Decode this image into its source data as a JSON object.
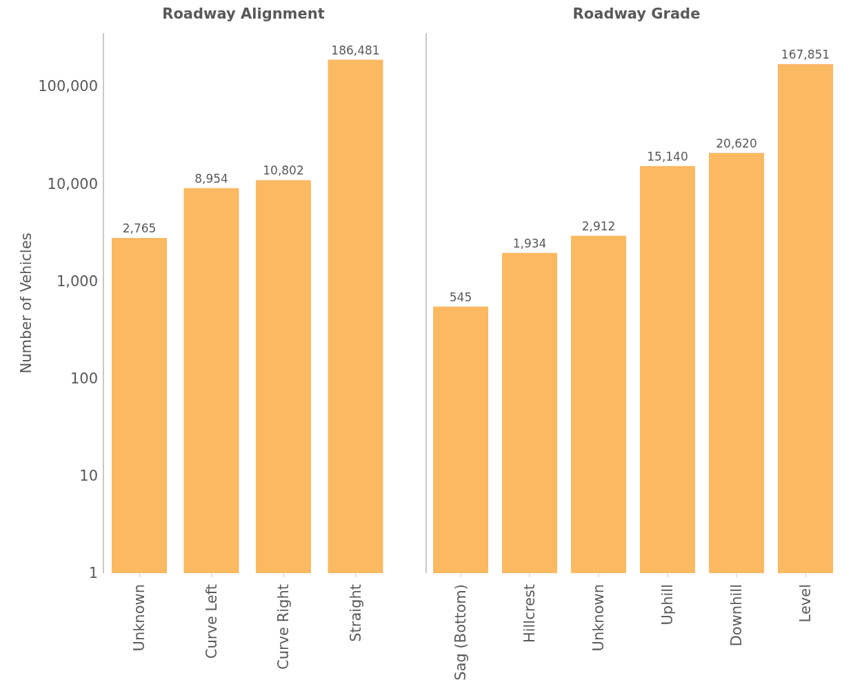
{
  "chart_data": [
    {
      "type": "bar",
      "title": "Roadway Alignment",
      "ylabel": "Number of Vehicles",
      "categories": [
        "Unknown",
        "Curve Left",
        "Curve Right",
        "Straight"
      ],
      "series": [
        {
          "color": "#fbb962",
          "values": [
            2765,
            8954,
            10802,
            186481
          ],
          "value_labels": [
            "2,765",
            "8,954",
            "10,802",
            "186,481"
          ]
        }
      ],
      "log": "y",
      "ylim": [
        1,
        350000
      ],
      "yticks": [
        1,
        10,
        100,
        {
          "value": 1000,
          "label": "1,000"
        },
        {
          "value": 10000,
          "label": "10,000"
        },
        {
          "value": 100000,
          "label": "100,000"
        }
      ],
      "grid": false,
      "legend": false
    },
    {
      "type": "bar",
      "title": "Roadway Grade",
      "categories": [
        "Sag (Bottom)",
        "Hillcrest",
        "Unknown",
        "Uphill",
        "Downhill",
        "Level"
      ],
      "series": [
        {
          "color": "#fbb962",
          "values": [
            545,
            1934,
            2912,
            15140,
            20620,
            167851
          ],
          "value_labels": [
            "545",
            "1,934",
            "2,912",
            "15,140",
            "20,620",
            "167,851"
          ]
        }
      ],
      "log": "y",
      "ylim": [
        1,
        350000
      ],
      "tick_labels": "x",
      "grid": false,
      "legend": false
    }
  ]
}
